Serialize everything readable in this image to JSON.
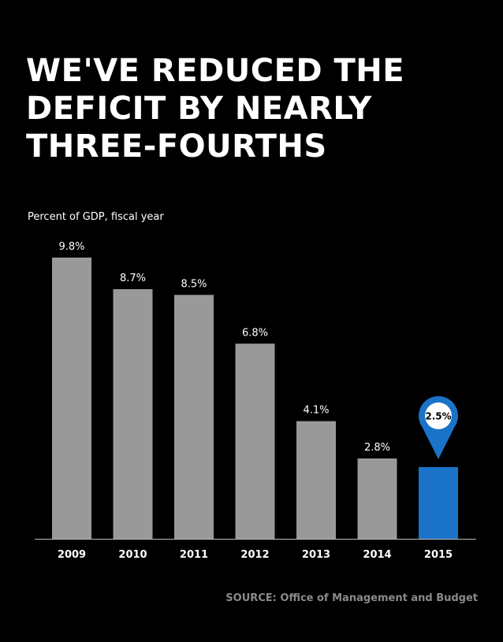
{
  "title_lines": [
    "WE'VE REDUCED THE",
    "DEFICIT BY NEARLY",
    "THREE-FOURTHS"
  ],
  "source": "SOURCE: Office of Management and Budget",
  "colors": {
    "background": "#000000",
    "bar": "#999999",
    "highlight_bar": "#1a73c8",
    "text": "#ffffff",
    "source_text": "#8a8a8a"
  },
  "chart_data": {
    "type": "bar",
    "subtitle": "Percent of GDP, fiscal year",
    "categories": [
      "2009",
      "2010",
      "2011",
      "2012",
      "2013",
      "2014",
      "2015"
    ],
    "values": [
      9.8,
      8.7,
      8.5,
      6.8,
      4.1,
      2.8,
      2.5
    ],
    "labels": [
      "9.8%",
      "8.7%",
      "8.5%",
      "6.8%",
      "4.1%",
      "2.8%",
      "2.5%"
    ],
    "highlight_index": 6,
    "highlight_marker": "map-pin-icon",
    "ylim": [
      0,
      9.8
    ],
    "grid": false,
    "xlabel": "",
    "ylabel": ""
  }
}
